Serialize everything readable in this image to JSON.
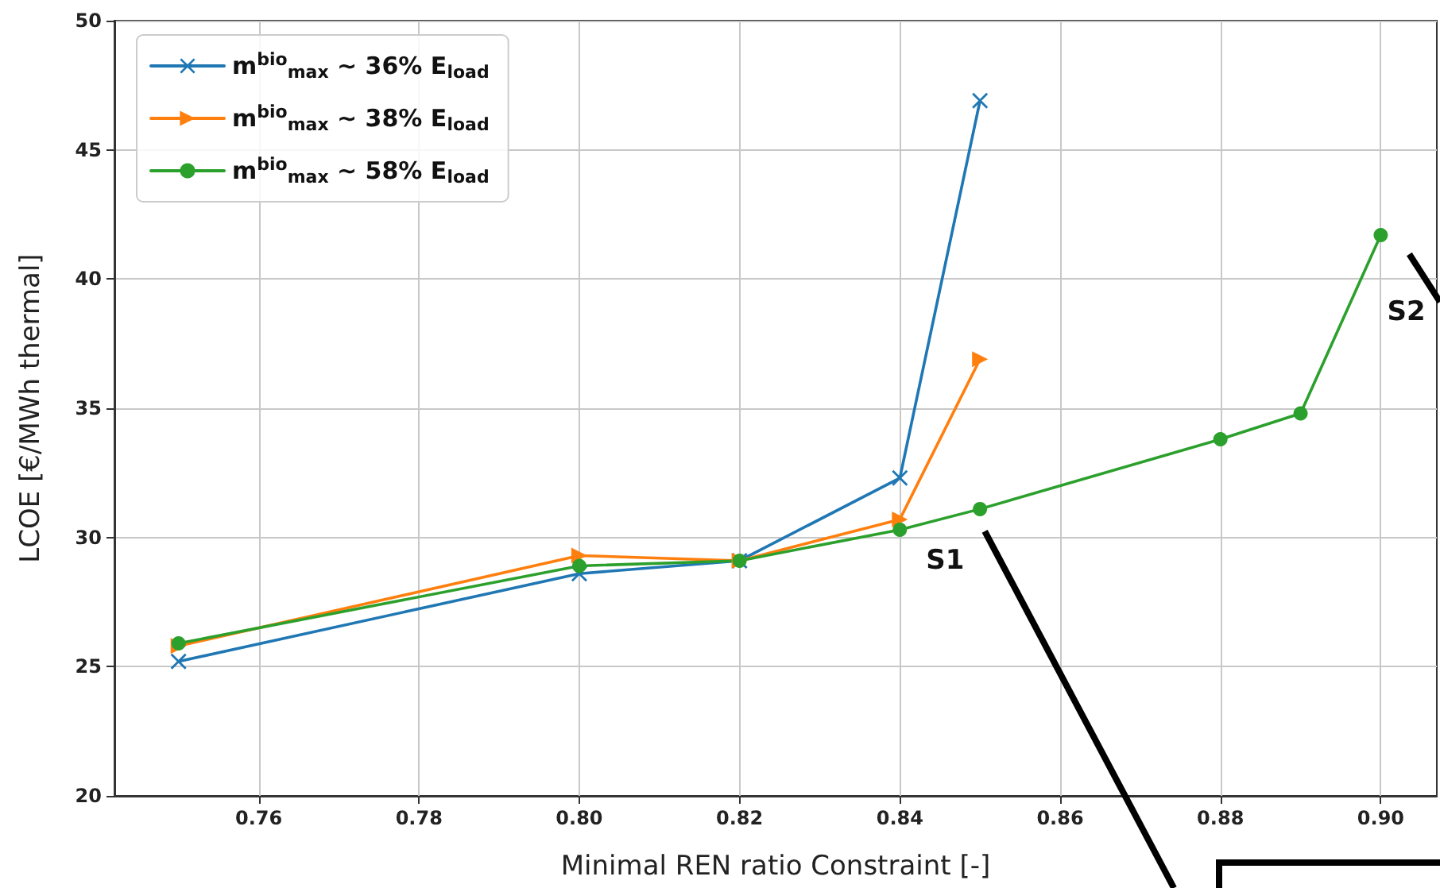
{
  "chart_data": {
    "type": "line",
    "xlabel": "Minimal REN ratio Constraint [-]",
    "ylabel": "LCOE [€/MWh thermal]",
    "xlim": [
      0.742,
      0.907
    ],
    "xticks": [
      {
        "value": 0.76,
        "label": "0.76"
      },
      {
        "value": 0.78,
        "label": "0.78"
      },
      {
        "value": 0.8,
        "label": "0.80"
      },
      {
        "value": 0.82,
        "label": "0.82"
      },
      {
        "value": 0.84,
        "label": "0.84"
      },
      {
        "value": 0.86,
        "label": "0.86"
      },
      {
        "value": 0.88,
        "label": "0.88"
      },
      {
        "value": 0.9,
        "label": "0.90"
      }
    ],
    "ylim": [
      20,
      50
    ],
    "yticks": [
      20,
      25,
      30,
      35,
      40,
      45,
      50
    ],
    "grid": true,
    "legend": "top left",
    "line_style": "solid",
    "series": [
      {
        "name": "m$^{bio}$$_{max}$ ~ 36% E$_{load}$",
        "color": "#1f77b4",
        "marker": "cross",
        "x": [
          0.75,
          0.8,
          0.82,
          0.84,
          0.85
        ],
        "values": [
          25.2,
          28.6,
          29.1,
          32.3,
          46.9
        ]
      },
      {
        "name": "m$^{bio}$$_{max}$ ~ 38% E$_{load}$",
        "color": "#ff7f0e",
        "marker": "triangle",
        "x": [
          0.75,
          0.8,
          0.82,
          0.84,
          0.85
        ],
        "values": [
          25.8,
          29.3,
          29.1,
          30.7,
          36.9
        ]
      },
      {
        "name": "m$^{bio}$$_{max}$ ~ 58% E$_{load}$",
        "color": "#2ca02c",
        "marker": "circle",
        "x": [
          0.75,
          0.8,
          0.82,
          0.84,
          0.85,
          0.88,
          0.89,
          0.9
        ],
        "values": [
          25.9,
          28.9,
          29.1,
          30.3,
          31.1,
          33.8,
          34.8,
          41.7
        ]
      }
    ],
    "annotations": [
      {
        "text": "S1",
        "x": 0.85,
        "y": 31.1
      },
      {
        "text": "S2",
        "x": 0.9,
        "y": 41.7
      }
    ]
  }
}
